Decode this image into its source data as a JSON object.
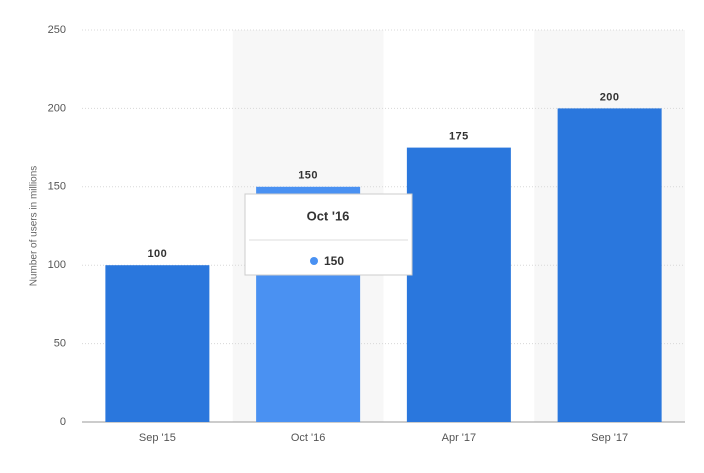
{
  "chart_data": {
    "type": "bar",
    "y_label": "Number of users in millions",
    "categories": [
      "Sep '15",
      "Oct '16",
      "Apr '17",
      "Sep '17"
    ],
    "values": [
      100,
      150,
      175,
      200
    ],
    "colors": [
      "#2a77dd",
      "#4a91f2",
      "#2a77dd",
      "#2a77dd"
    ],
    "ylim": [
      0,
      250
    ],
    "yticks": [
      0,
      50,
      100,
      150,
      200,
      250
    ],
    "grid": true
  }
}
